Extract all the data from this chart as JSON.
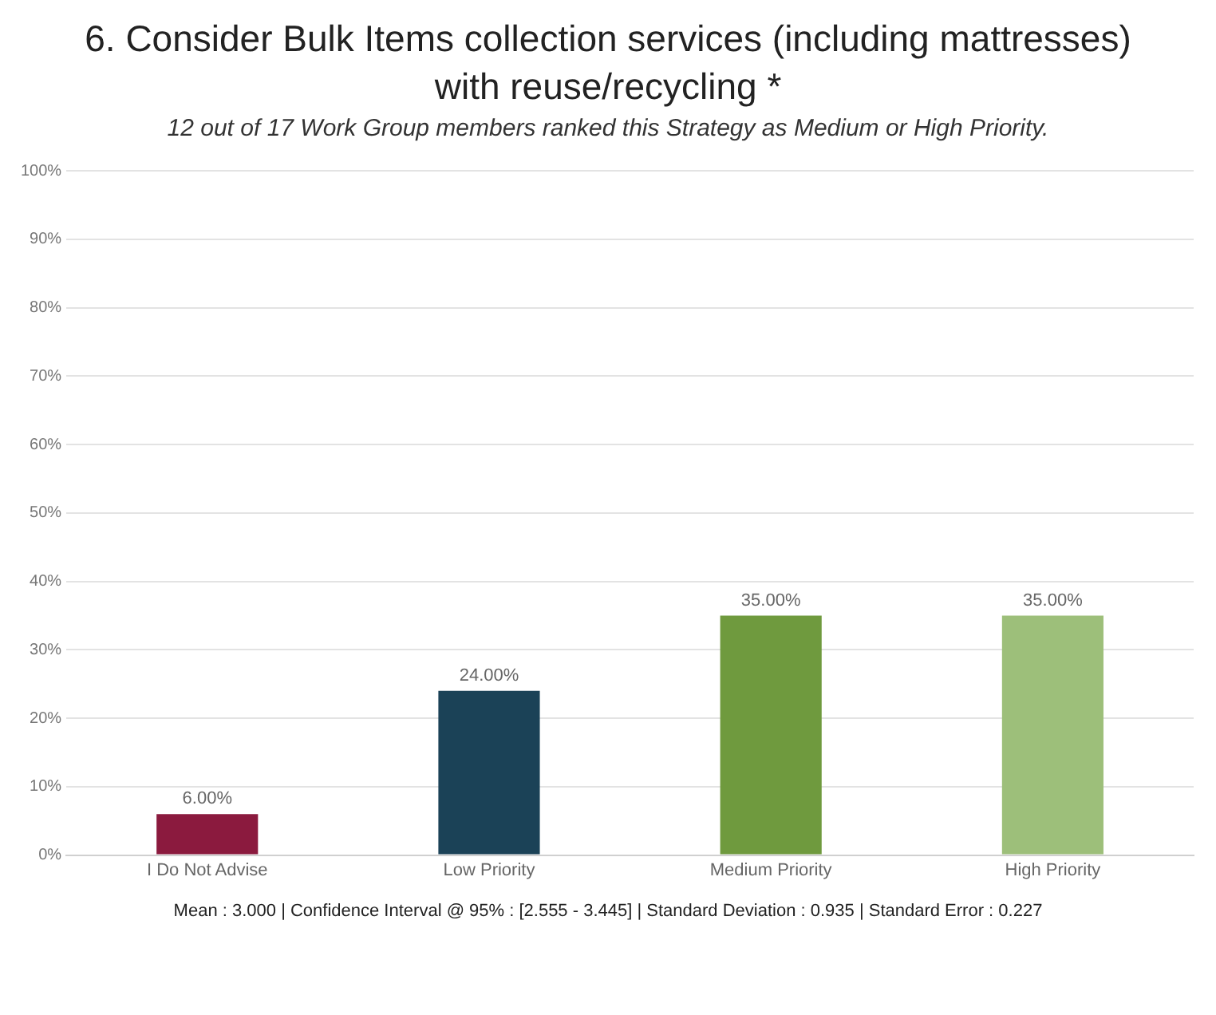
{
  "chart_data": {
    "type": "bar",
    "title": "6. Consider Bulk Items collection services (including mattresses) with reuse/recycling *",
    "subtitle": "12 out of 17 Work Group members ranked this Strategy as Medium or High Priority.",
    "categories": [
      "I Do Not Advise",
      "Low Priority",
      "Medium Priority",
      "High Priority"
    ],
    "values": [
      6,
      24,
      35,
      35
    ],
    "colors": [
      "#8b1a3e",
      "#1b4257",
      "#6f9a3e",
      "#9dbf7a"
    ],
    "value_labels": [
      "6.00%",
      "24.00%",
      "35.00%",
      "35.00%"
    ],
    "ylim": [
      0,
      100
    ],
    "yticks": [
      {
        "value": 0,
        "label": "0%"
      },
      {
        "value": 10,
        "label": "10%"
      },
      {
        "value": 20,
        "label": "20%"
      },
      {
        "value": 30,
        "label": "30%"
      },
      {
        "value": 40,
        "label": "40%"
      },
      {
        "value": 50,
        "label": "50%"
      },
      {
        "value": 60,
        "label": "60%"
      },
      {
        "value": 70,
        "label": "70%"
      },
      {
        "value": 80,
        "label": "80%"
      },
      {
        "value": 90,
        "label": "90%"
      },
      {
        "value": 100,
        "label": "100%"
      }
    ],
    "grid": "y",
    "legend": false,
    "annotations": [
      "Mean : 3.000  |  Confidence Interval @ 95% : [2.555 - 3.445]  |  Standard Deviation : 0.935  |  Standard Error : 0.227"
    ]
  }
}
